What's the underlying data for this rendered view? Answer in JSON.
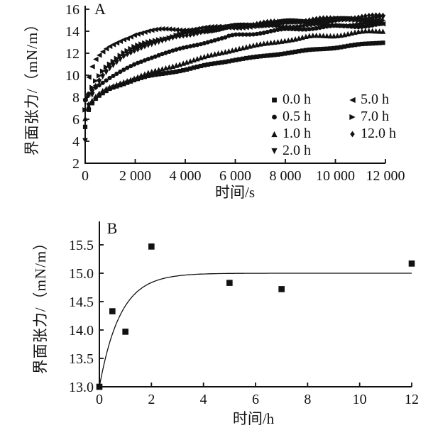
{
  "figure": {
    "background": "#ffffff",
    "ink_color": "#111111"
  },
  "chart_data": [
    {
      "type": "scatter",
      "panel_label": "A",
      "xlabel": "时间/s",
      "ylabel": "界面张力/（mN/m）",
      "xlim": [
        0,
        12000
      ],
      "ylim": [
        2,
        16
      ],
      "xticks": [
        0,
        2000,
        4000,
        6000,
        8000,
        10000,
        12000
      ],
      "xtick_labels": [
        "0",
        "2 000",
        "4 000",
        "6 000",
        "8 000",
        "10 000",
        "12 000"
      ],
      "yticks": [
        2,
        4,
        6,
        8,
        10,
        12,
        14,
        16
      ],
      "ytick_labels": [
        "2",
        "4",
        "6",
        "8",
        "10",
        "12",
        "14",
        "16"
      ],
      "grid": false,
      "legend_position": "inside-lower-right-two-columns",
      "x": [
        0,
        100,
        200,
        400,
        600,
        800,
        1000,
        1500,
        2000,
        2500,
        3000,
        4000,
        5000,
        6000,
        7000,
        8000,
        9000,
        10000,
        11000,
        12000
      ],
      "series": [
        {
          "name": "0.0 h",
          "marker": "square",
          "values": [
            5.3,
            6.6,
            7.2,
            7.8,
            8.2,
            8.5,
            8.8,
            9.2,
            9.6,
            9.9,
            10.1,
            10.5,
            11.0,
            11.4,
            11.7,
            12.0,
            12.3,
            12.5,
            12.8,
            13.0
          ]
        },
        {
          "name": "0.5 h",
          "marker": "circle",
          "values": [
            7.7,
            8.2,
            8.5,
            8.9,
            9.2,
            9.5,
            9.8,
            10.4,
            11.0,
            11.5,
            11.9,
            12.5,
            13.1,
            13.6,
            13.9,
            14.1,
            14.3,
            14.4,
            14.5,
            14.6
          ]
        },
        {
          "name": "1.0 h",
          "marker": "triangle-up",
          "values": [
            6.1,
            7.0,
            7.5,
            8.0,
            8.4,
            8.7,
            8.9,
            9.4,
            9.8,
            10.2,
            10.5,
            11.2,
            11.8,
            12.4,
            12.8,
            13.2,
            13.5,
            13.7,
            13.9,
            14.1
          ]
        },
        {
          "name": "2.0 h",
          "marker": "triangle-down",
          "values": [
            4.0,
            6.8,
            7.8,
            8.8,
            9.6,
            10.2,
            10.7,
            11.6,
            12.3,
            12.7,
            13.1,
            13.7,
            14.1,
            14.4,
            14.6,
            14.8,
            14.9,
            15.0,
            15.1,
            15.2
          ]
        },
        {
          "name": "5.0 h",
          "marker": "triangle-left",
          "values": [
            7.9,
            9.5,
            10.4,
            11.4,
            11.9,
            12.3,
            12.6,
            13.2,
            13.8,
            14.0,
            14.1,
            14.2,
            14.3,
            14.4,
            14.4,
            14.5,
            14.5,
            14.6,
            14.6,
            14.7
          ]
        },
        {
          "name": "7.0 h",
          "marker": "triangle-right",
          "values": [
            6.8,
            7.8,
            8.5,
            9.4,
            10.1,
            10.7,
            11.1,
            12.0,
            12.6,
            13.0,
            13.3,
            13.8,
            14.1,
            14.4,
            14.6,
            14.7,
            14.8,
            14.9,
            15.0,
            15.0
          ]
        },
        {
          "name": "12.0 h",
          "marker": "diamond",
          "values": [
            4.2,
            7.0,
            8.0,
            9.0,
            9.7,
            10.3,
            10.8,
            11.7,
            12.3,
            12.8,
            13.1,
            13.7,
            14.1,
            14.5,
            14.7,
            14.9,
            15.0,
            15.2,
            15.3,
            15.4
          ]
        }
      ]
    },
    {
      "type": "scatter",
      "panel_label": "B",
      "xlabel": "时间/h",
      "ylabel": "界面张力/（mN/m）",
      "xlim": [
        0,
        12
      ],
      "ylim": [
        13.0,
        15.5
      ],
      "xticks": [
        0,
        2,
        4,
        6,
        8,
        10,
        12
      ],
      "xtick_labels": [
        "0",
        "2",
        "4",
        "6",
        "8",
        "10",
        "12"
      ],
      "yticks": [
        13.0,
        13.5,
        14.0,
        14.5,
        15.0,
        15.5
      ],
      "ytick_labels": [
        "13.0",
        "13.5",
        "14.0",
        "14.5",
        "15.0",
        "15.5"
      ],
      "grid": false,
      "points": {
        "marker": "square",
        "x": [
          0,
          0.5,
          1,
          2,
          5,
          7,
          12
        ],
        "y": [
          13.0,
          14.33,
          13.97,
          15.47,
          14.83,
          14.72,
          15.17
        ]
      },
      "fit_curve": {
        "type": "exponential-rise",
        "y_start": 13.0,
        "asymptote": 15.0,
        "time_constant_h": 0.8
      }
    }
  ]
}
